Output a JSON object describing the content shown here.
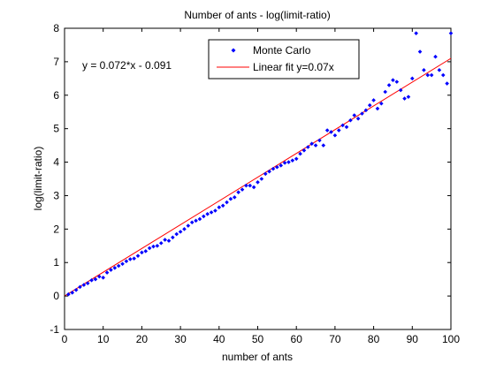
{
  "chart_data": {
    "type": "scatter",
    "title": "Number of ants - log(limit-ratio)",
    "xlabel": "number of ants",
    "ylabel": "log(limit-ratio)",
    "xlim": [
      0,
      100
    ],
    "ylim": [
      -1,
      8
    ],
    "x_ticks": [
      "0",
      "10",
      "20",
      "30",
      "40",
      "50",
      "60",
      "70",
      "80",
      "90",
      "100"
    ],
    "y_ticks": [
      "-1",
      "0",
      "1",
      "2",
      "3",
      "4",
      "5",
      "6",
      "7",
      "8"
    ],
    "grid": false,
    "legend_position": "top-center",
    "annotation": "y = 0.072*x - 0.091",
    "series": [
      {
        "name": "Monte Carlo",
        "kind": "scatter",
        "color": "#0000ff",
        "x": [
          1,
          2,
          3,
          4,
          5,
          6,
          7,
          8,
          9,
          10,
          11,
          12,
          13,
          14,
          15,
          16,
          17,
          18,
          19,
          20,
          21,
          22,
          23,
          24,
          25,
          26,
          27,
          28,
          29,
          30,
          31,
          32,
          33,
          34,
          35,
          36,
          37,
          38,
          39,
          40,
          41,
          42,
          43,
          44,
          45,
          46,
          47,
          48,
          49,
          50,
          51,
          52,
          53,
          54,
          55,
          56,
          57,
          58,
          59,
          60,
          61,
          62,
          63,
          64,
          65,
          66,
          67,
          68,
          69,
          70,
          71,
          72,
          73,
          74,
          75,
          76,
          77,
          78,
          79,
          80,
          81,
          82,
          83,
          84,
          85,
          86,
          87,
          88,
          89,
          90,
          91,
          92,
          93,
          94,
          95,
          96,
          97,
          98,
          99,
          100
        ],
        "y": [
          0.05,
          0.1,
          0.18,
          0.27,
          0.33,
          0.38,
          0.47,
          0.5,
          0.58,
          0.55,
          0.7,
          0.78,
          0.84,
          0.9,
          0.96,
          1.04,
          1.1,
          1.12,
          1.2,
          1.3,
          1.34,
          1.43,
          1.48,
          1.5,
          1.58,
          1.68,
          1.65,
          1.75,
          1.85,
          1.92,
          2.0,
          2.1,
          2.2,
          2.25,
          2.3,
          2.38,
          2.45,
          2.5,
          2.55,
          2.65,
          2.7,
          2.8,
          2.9,
          2.95,
          3.1,
          3.18,
          3.3,
          3.3,
          3.25,
          3.4,
          3.5,
          3.65,
          3.72,
          3.8,
          3.85,
          3.9,
          3.98,
          4.0,
          4.05,
          4.1,
          4.25,
          4.35,
          4.45,
          4.55,
          4.5,
          4.65,
          4.5,
          4.95,
          4.9,
          4.8,
          4.95,
          5.1,
          5.05,
          5.25,
          5.4,
          5.3,
          5.45,
          5.55,
          5.7,
          5.85,
          5.6,
          5.75,
          6.1,
          6.3,
          6.45,
          6.4,
          6.15,
          5.9,
          5.95,
          6.5,
          7.85,
          7.3,
          6.75,
          6.6,
          6.6,
          7.15,
          6.75,
          6.6,
          6.35,
          7.85
        ]
      },
      {
        "name": "Linear fit y=0.07x",
        "kind": "line",
        "color": "#ff0000",
        "x": [
          0,
          100
        ],
        "y": [
          0,
          7.1
        ]
      }
    ]
  }
}
